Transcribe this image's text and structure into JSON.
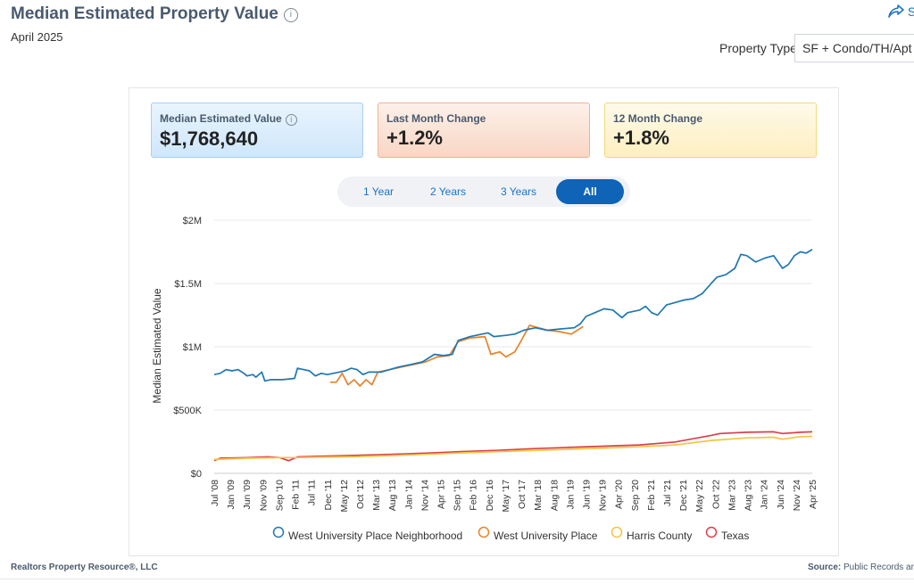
{
  "header": {
    "title": "Median Estimated Property Value",
    "subtitle": "April 2025",
    "share_label": "S",
    "property_type_label": "Property Type",
    "property_type_value": "SF + Condo/TH/Apt"
  },
  "cards": [
    {
      "label": "Median Estimated Value",
      "value": "$1,768,640"
    },
    {
      "label": "Last Month Change",
      "value": "+1.2%"
    },
    {
      "label": "12 Month Change",
      "value": "+1.8%"
    }
  ],
  "ranges": [
    "1 Year",
    "2 Years",
    "3 Years",
    "All"
  ],
  "active_range": "All",
  "footer": {
    "left": "Realtors Property Resource®, LLC",
    "source_label": "Source:",
    "source_value": "Public Records ar"
  },
  "chart_data": {
    "type": "line",
    "ylabel": "Median Estimated Value",
    "xlabel": "",
    "ylim": [
      0,
      2000000
    ],
    "yticks": [
      0,
      500000,
      1000000,
      1500000,
      2000000
    ],
    "ytick_labels": [
      "$0",
      "$500K",
      "$1M",
      "$1.5M",
      "$2M"
    ],
    "xlim": [
      "2008-07",
      "2025-04"
    ],
    "xtick_labels": [
      "Jul '08",
      "Jan '09",
      "Jun '09",
      "Nov '09",
      "Sep '10",
      "Feb '11",
      "Jul '11",
      "Dec '11",
      "May '12",
      "Oct '12",
      "Mar '13",
      "Aug '13",
      "Jan '14",
      "Nov '14",
      "Apr '15",
      "Sep '15",
      "Feb '16",
      "Dec '16",
      "May '17",
      "Oct '17",
      "Mar '18",
      "Aug '18",
      "Jan '19",
      "Jun '19",
      "Nov '19",
      "Apr '20",
      "Sep '20",
      "Feb '21",
      "Jul '21",
      "Dec '21",
      "May '22",
      "Oct '22",
      "Mar '23",
      "Aug '23",
      "Jan '24",
      "Jun '24",
      "Nov '24",
      "Apr '25"
    ],
    "legend": "bottom",
    "series": [
      {
        "name": "West University Place Neighborhood",
        "color": "#1f77b4",
        "points": [
          [
            "2008-07",
            780000
          ],
          [
            "2008-09",
            790000
          ],
          [
            "2008-11",
            820000
          ],
          [
            "2009-01",
            810000
          ],
          [
            "2009-03",
            820000
          ],
          [
            "2009-05",
            790000
          ],
          [
            "2009-06",
            770000
          ],
          [
            "2009-08",
            780000
          ],
          [
            "2009-09",
            760000
          ],
          [
            "2009-11",
            800000
          ],
          [
            "2009-12",
            730000
          ],
          [
            "2010-02",
            740000
          ],
          [
            "2010-06",
            740000
          ],
          [
            "2010-10",
            750000
          ],
          [
            "2010-11",
            830000
          ],
          [
            "2011-01",
            820000
          ],
          [
            "2011-03",
            810000
          ],
          [
            "2011-05",
            770000
          ],
          [
            "2011-07",
            790000
          ],
          [
            "2011-09",
            780000
          ],
          [
            "2011-11",
            790000
          ],
          [
            "2012-01",
            800000
          ],
          [
            "2012-03",
            810000
          ],
          [
            "2012-05",
            830000
          ],
          [
            "2012-07",
            820000
          ],
          [
            "2012-09",
            780000
          ],
          [
            "2012-11",
            800000
          ],
          [
            "2013-03",
            800000
          ],
          [
            "2013-06",
            820000
          ],
          [
            "2013-09",
            840000
          ],
          [
            "2014-01",
            860000
          ],
          [
            "2014-05",
            880000
          ],
          [
            "2014-09",
            940000
          ],
          [
            "2014-12",
            930000
          ],
          [
            "2015-03",
            940000
          ],
          [
            "2015-05",
            1050000
          ],
          [
            "2015-09",
            1080000
          ],
          [
            "2016-01",
            1100000
          ],
          [
            "2016-03",
            1110000
          ],
          [
            "2016-05",
            1080000
          ],
          [
            "2016-09",
            1090000
          ],
          [
            "2016-12",
            1100000
          ],
          [
            "2017-03",
            1130000
          ],
          [
            "2017-07",
            1150000
          ],
          [
            "2017-11",
            1130000
          ],
          [
            "2018-03",
            1140000
          ],
          [
            "2018-08",
            1150000
          ],
          [
            "2018-10",
            1180000
          ],
          [
            "2018-12",
            1240000
          ],
          [
            "2019-03",
            1270000
          ],
          [
            "2019-06",
            1300000
          ],
          [
            "2019-09",
            1290000
          ],
          [
            "2019-12",
            1230000
          ],
          [
            "2020-02",
            1270000
          ],
          [
            "2020-06",
            1290000
          ],
          [
            "2020-08",
            1320000
          ],
          [
            "2020-10",
            1270000
          ],
          [
            "2020-12",
            1250000
          ],
          [
            "2021-03",
            1330000
          ],
          [
            "2021-06",
            1350000
          ],
          [
            "2021-09",
            1370000
          ],
          [
            "2021-12",
            1380000
          ],
          [
            "2022-03",
            1420000
          ],
          [
            "2022-06",
            1500000
          ],
          [
            "2022-08",
            1550000
          ],
          [
            "2022-11",
            1570000
          ],
          [
            "2023-02",
            1620000
          ],
          [
            "2023-04",
            1730000
          ],
          [
            "2023-06",
            1720000
          ],
          [
            "2023-09",
            1670000
          ],
          [
            "2023-12",
            1700000
          ],
          [
            "2024-03",
            1720000
          ],
          [
            "2024-06",
            1620000
          ],
          [
            "2024-08",
            1650000
          ],
          [
            "2024-10",
            1720000
          ],
          [
            "2024-12",
            1750000
          ],
          [
            "2025-02",
            1740000
          ],
          [
            "2025-04",
            1768640
          ]
        ]
      },
      {
        "name": "West University Place",
        "color": "#e6832a",
        "points": [
          [
            "2011-10",
            720000
          ],
          [
            "2011-12",
            720000
          ],
          [
            "2012-02",
            790000
          ],
          [
            "2012-04",
            700000
          ],
          [
            "2012-06",
            740000
          ],
          [
            "2012-08",
            690000
          ],
          [
            "2012-10",
            740000
          ],
          [
            "2012-12",
            700000
          ],
          [
            "2013-02",
            800000
          ],
          [
            "2013-06",
            820000
          ],
          [
            "2013-10",
            840000
          ],
          [
            "2014-02",
            860000
          ],
          [
            "2014-06",
            880000
          ],
          [
            "2014-10",
            920000
          ],
          [
            "2015-02",
            930000
          ],
          [
            "2015-05",
            1040000
          ],
          [
            "2015-09",
            1070000
          ],
          [
            "2016-02",
            1080000
          ],
          [
            "2016-04",
            940000
          ],
          [
            "2016-07",
            960000
          ],
          [
            "2016-09",
            920000
          ],
          [
            "2016-12",
            960000
          ],
          [
            "2017-02",
            1040000
          ],
          [
            "2017-05",
            1170000
          ],
          [
            "2017-08",
            1150000
          ],
          [
            "2017-11",
            1130000
          ],
          [
            "2018-03",
            1120000
          ],
          [
            "2018-07",
            1100000
          ],
          [
            "2018-11",
            1160000
          ]
        ]
      },
      {
        "name": "Harris County",
        "color": "#f5c342",
        "points": [
          [
            "2008-07",
            110000
          ],
          [
            "2009-06",
            120000
          ],
          [
            "2010-06",
            125000
          ],
          [
            "2010-11",
            125000
          ],
          [
            "2011-06",
            128000
          ],
          [
            "2012-06",
            132000
          ],
          [
            "2013-06",
            140000
          ],
          [
            "2014-06",
            150000
          ],
          [
            "2015-06",
            162000
          ],
          [
            "2016-06",
            172000
          ],
          [
            "2017-06",
            180000
          ],
          [
            "2018-06",
            190000
          ],
          [
            "2019-06",
            200000
          ],
          [
            "2020-06",
            210000
          ],
          [
            "2021-06",
            225000
          ],
          [
            "2022-06",
            260000
          ],
          [
            "2023-06",
            280000
          ],
          [
            "2024-03",
            285000
          ],
          [
            "2024-06",
            270000
          ],
          [
            "2024-12",
            290000
          ],
          [
            "2025-04",
            292000
          ]
        ]
      },
      {
        "name": "Texas",
        "color": "#d9404a",
        "points": [
          [
            "2008-07",
            100000
          ],
          [
            "2008-09",
            120000
          ],
          [
            "2009-06",
            125000
          ],
          [
            "2010-01",
            130000
          ],
          [
            "2010-05",
            125000
          ],
          [
            "2010-08",
            100000
          ],
          [
            "2010-11",
            130000
          ],
          [
            "2011-06",
            135000
          ],
          [
            "2012-06",
            142000
          ],
          [
            "2013-06",
            150000
          ],
          [
            "2014-06",
            160000
          ],
          [
            "2015-06",
            172000
          ],
          [
            "2016-06",
            182000
          ],
          [
            "2017-06",
            195000
          ],
          [
            "2018-06",
            205000
          ],
          [
            "2019-06",
            215000
          ],
          [
            "2020-06",
            225000
          ],
          [
            "2021-06",
            248000
          ],
          [
            "2022-06",
            300000
          ],
          [
            "2022-09",
            315000
          ],
          [
            "2023-06",
            325000
          ],
          [
            "2024-03",
            328000
          ],
          [
            "2024-06",
            315000
          ],
          [
            "2024-12",
            325000
          ],
          [
            "2025-04",
            328000
          ]
        ]
      }
    ]
  }
}
